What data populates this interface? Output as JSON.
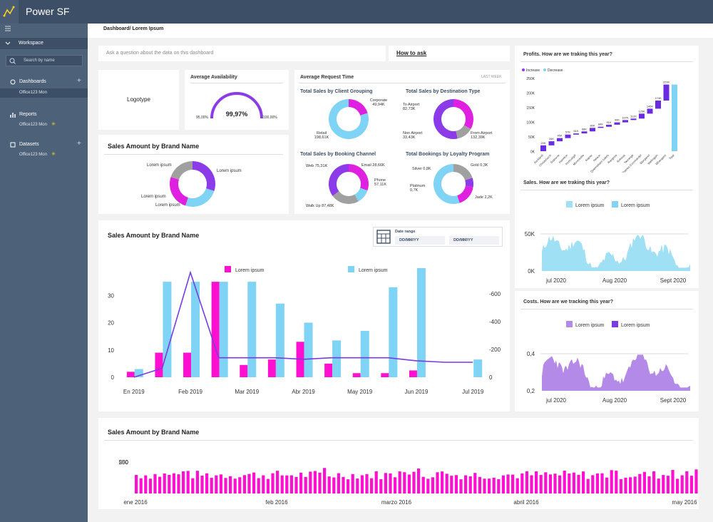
{
  "app": {
    "title": "Power SF"
  },
  "sidebar": {
    "workspace": "Workspace",
    "search_placeholder": "Search by name",
    "sections": [
      {
        "label": "Dashboards",
        "item": "Office123 Mon"
      },
      {
        "label": "Reports",
        "item": "Office123 Mon"
      },
      {
        "label": "Datasets",
        "item": "Office123 Mon"
      }
    ]
  },
  "breadcrumb": "Dashboard/ Lorem Ipsum",
  "qa": {
    "placeholder": "Ask a question about the data on this dashboard",
    "how": "How to ask"
  },
  "logotype": "Logotype",
  "availability": {
    "title": "Average Availability",
    "value": "99,97%",
    "min": "95,00%",
    "max": "100,00%",
    "fraction": 0.9997
  },
  "request": {
    "title": "Average Request Time",
    "period": "LAST WEEK",
    "donuts": [
      {
        "title": "Total Sales by Client Grouping",
        "labels": [
          "Corporate 49,94K",
          "Retail 198,61K"
        ],
        "values": [
          49.94,
          198.61
        ],
        "colors": [
          "#e020e0",
          "#7fd3f5"
        ]
      },
      {
        "title": "Total Sales by Destination Type",
        "labels": [
          "To Airport 82,73K",
          "Non Airport 33,43K",
          "From Airport 132,39K"
        ],
        "values": [
          82.73,
          33.43,
          132.39
        ],
        "colors": [
          "#e020e0",
          "#a0a0a0",
          "#8b3be8"
        ]
      },
      {
        "title": "Total Sales by Booking Channel",
        "labels": [
          "Web 75,31K",
          "Email 28,66K",
          "Phone 57,11K",
          "Walk Up 87,48K"
        ],
        "values": [
          75.31,
          28.66,
          57.11,
          87.48
        ],
        "colors": [
          "#e020e0",
          "#7fd3f5",
          "#a0a0a0",
          "#8b3be8"
        ]
      },
      {
        "title": "Total Bookings by Loyalty Program",
        "labels": [
          "Silver 0,8K",
          "Gold 0,3K",
          "Platinum 0,7K",
          "Jade 2,2K"
        ],
        "values": [
          0.8,
          0.3,
          0.7,
          2.2
        ],
        "colors": [
          "#a0a0a0",
          "#8b3be8",
          "#e020e0",
          "#7fd3f5"
        ]
      }
    ]
  },
  "brand_small": {
    "title": "Sales Amount by Brand Name",
    "labels": [
      "Lorem ipsum",
      "Lorem ipsum",
      "Lorem ipsum",
      "Lorem ipsum"
    ],
    "values": [
      30,
      25,
      25,
      20
    ],
    "colors": [
      "#8b3be8",
      "#7fd3f5",
      "#e020e0",
      "#a0a0a0"
    ]
  },
  "main_chart": {
    "title": "Sales Amount by Brand Name",
    "date_range": "Date range",
    "date_from": "DD/MM/YY",
    "date_to": "DD/MM/YY",
    "chart_data": {
      "type": "bar",
      "categories": [
        "En 2019",
        "",
        "Feb 2019",
        "",
        "Mar 2019",
        "",
        "Abr 2019",
        "",
        "May 2019",
        "",
        "Jun 2019",
        "",
        "Jul 2019"
      ],
      "series": [
        {
          "name": "Lorem ipsum",
          "color": "#ff10d0",
          "values": [
            2,
            9,
            9,
            35,
            4.5,
            6.5,
            13,
            5,
            1.5,
            1.5,
            2.5,
            0,
            0
          ]
        },
        {
          "name": "Lorem ipsum",
          "color": "#7fd3f5",
          "values": [
            3,
            35,
            35,
            35,
            35,
            27,
            20,
            13.5,
            17,
            33,
            40,
            0,
            6.5
          ]
        }
      ],
      "line": [
        0,
        60,
        700,
        130,
        130,
        130,
        120,
        130,
        130,
        130,
        110,
        100,
        100
      ],
      "ylim": [
        0,
        40
      ],
      "y2lim": [
        0,
        800
      ],
      "yticks": [
        0,
        10,
        20,
        30
      ],
      "y2ticks": [
        0,
        -200,
        -400,
        -600
      ]
    }
  },
  "bottom_chart": {
    "title": "Sales Amount by Brand Name",
    "yticks": [
      "500",
      "250",
      "0"
    ],
    "xlabels": [
      "ene 2016",
      "feb 2016",
      "marzo 2016",
      "abril 2016",
      "may 2016"
    ]
  },
  "profits": {
    "title": "Profits. How are we traking this year?",
    "legend": [
      "Increase",
      "Decrease"
    ],
    "yticks": [
      "250K",
      "200K",
      "150K",
      "100K",
      "50K",
      "0K"
    ],
    "steps": [
      {
        "label": "Auckland",
        "value": "20K"
      },
      {
        "label": "Christchurch",
        "value": "34K"
      },
      {
        "label": "Gisborne",
        "value": "45K"
      },
      {
        "label": "Hamilton",
        "value": "57K"
      },
      {
        "label": "Invercargill",
        "value": "61K"
      },
      {
        "label": "Morrinsville",
        "value": "68K"
      },
      {
        "label": "Napier",
        "value": "80K"
      },
      {
        "label": "Nelson",
        "value": "84K"
      },
      {
        "label": "Queenstown Lakes",
        "value": "91K"
      },
      {
        "label": "Rangiora",
        "value": "99K"
      },
      {
        "label": "Rotorua",
        "value": "107K"
      },
      {
        "label": "Tauranga",
        "value": "112K"
      },
      {
        "label": "Thames-Coromandel",
        "value": "129K"
      },
      {
        "label": "Wanganui",
        "value": "146K"
      },
      {
        "label": "Wellington",
        "value": "174K"
      },
      {
        "label": "Whangarei",
        "value": "229K"
      },
      {
        "label": "Total",
        "value": ""
      }
    ]
  },
  "sales_trk": {
    "title": "Sales. How are we traking this year?",
    "legend": [
      "Lorem ipsum",
      "Lorem ipsum"
    ],
    "yticks": [
      "50K",
      "0K"
    ],
    "xlabels": [
      "jul 2020",
      "Aug 2020",
      "Sept 2020"
    ]
  },
  "costs_trk": {
    "title": "Costs. How are we tracking this year?",
    "legend": [
      "Lorem ipsum",
      "Lorem ipsum"
    ],
    "yticks": [
      "0,4",
      "0,2"
    ],
    "xlabels": [
      "jul 2020",
      "Aug 2020",
      "Sept 2020"
    ]
  }
}
